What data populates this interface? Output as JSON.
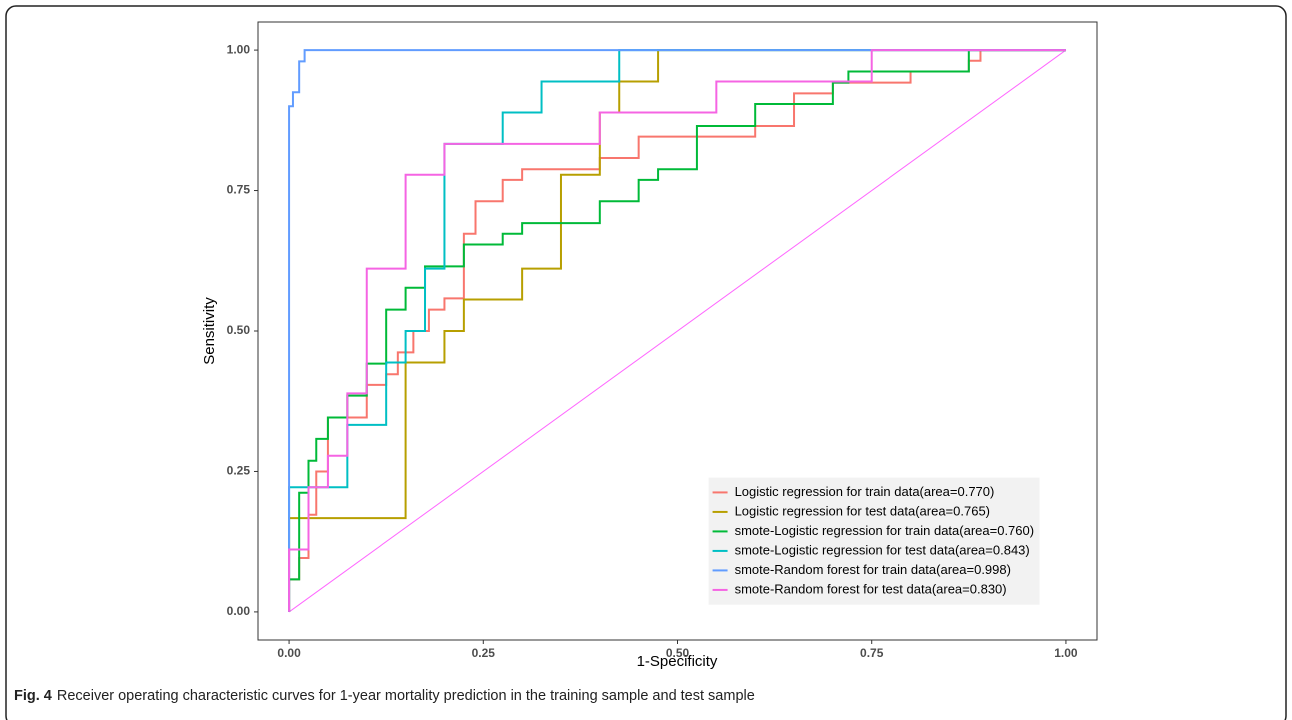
{
  "chart_data": {
    "type": "line",
    "x_label": "1-Specificity",
    "y_label": "Sensitivity",
    "xlim": [
      -0.04,
      1.04
    ],
    "ylim": [
      -0.05,
      1.05
    ],
    "xticks": [
      {
        "value": 0,
        "label": "0.00"
      },
      {
        "value": 0.25,
        "label": "0.25"
      },
      {
        "value": 0.5,
        "label": "0.50"
      },
      {
        "value": 0.75,
        "label": "0.75"
      },
      {
        "value": 1,
        "label": "1.00"
      }
    ],
    "yticks": [
      {
        "value": 0,
        "label": "0.00"
      },
      {
        "value": 0.25,
        "label": "0.25"
      },
      {
        "value": 0.5,
        "label": "0.50"
      },
      {
        "value": 0.75,
        "label": "0.75"
      },
      {
        "value": 1,
        "label": "1.00"
      }
    ],
    "grid": false,
    "legend_position": "bottom-right",
    "diagonal": {
      "color": "#ff66ff",
      "x": [
        0,
        1
      ],
      "values": [
        0,
        1
      ]
    },
    "series": [
      {
        "name": "Logistic regression for train data(area=0.770)",
        "color": "#f8766d",
        "x": [
          0,
          0,
          0.013,
          0.013,
          0.025,
          0.025,
          0.035,
          0.035,
          0.05,
          0.05,
          0.1,
          0.1,
          0.125,
          0.125,
          0.14,
          0.14,
          0.16,
          0.16,
          0.18,
          0.18,
          0.2,
          0.2,
          0.225,
          0.225,
          0.24,
          0.24,
          0.275,
          0.275,
          0.3,
          0.3,
          0.4,
          0.4,
          0.45,
          0.45,
          0.6,
          0.6,
          0.65,
          0.65,
          0.7,
          0.7,
          0.8,
          0.8,
          0.875,
          0.875,
          0.89,
          0.89,
          1
        ],
        "values": [
          0,
          0.058,
          0.058,
          0.096,
          0.096,
          0.173,
          0.173,
          0.25,
          0.25,
          0.346,
          0.346,
          0.404,
          0.404,
          0.423,
          0.423,
          0.462,
          0.462,
          0.5,
          0.5,
          0.538,
          0.538,
          0.558,
          0.558,
          0.673,
          0.673,
          0.731,
          0.731,
          0.769,
          0.769,
          0.788,
          0.788,
          0.808,
          0.808,
          0.846,
          0.846,
          0.865,
          0.865,
          0.923,
          0.923,
          0.942,
          0.942,
          0.962,
          0.962,
          0.981,
          0.981,
          1,
          1
        ]
      },
      {
        "name": "Logistic regression for test data(area=0.765)",
        "color": "#b79f00",
        "x": [
          0,
          0,
          0.15,
          0.15,
          0.2,
          0.2,
          0.225,
          0.225,
          0.3,
          0.3,
          0.35,
          0.35,
          0.4,
          0.4,
          0.425,
          0.425,
          0.475,
          0.475,
          1
        ],
        "values": [
          0,
          0.167,
          0.167,
          0.444,
          0.444,
          0.5,
          0.5,
          0.556,
          0.556,
          0.611,
          0.611,
          0.778,
          0.778,
          0.889,
          0.889,
          0.944,
          0.944,
          1,
          1
        ]
      },
      {
        "name": "smote-Logistic regression for train data(area=0.760)",
        "color": "#00ba38",
        "x": [
          0,
          0,
          0.013,
          0.013,
          0.025,
          0.025,
          0.035,
          0.035,
          0.05,
          0.05,
          0.075,
          0.075,
          0.1,
          0.1,
          0.125,
          0.125,
          0.15,
          0.15,
          0.175,
          0.175,
          0.225,
          0.225,
          0.275,
          0.275,
          0.3,
          0.3,
          0.4,
          0.4,
          0.45,
          0.45,
          0.475,
          0.475,
          0.525,
          0.525,
          0.6,
          0.6,
          0.7,
          0.7,
          0.72,
          0.72,
          0.875,
          0.875,
          1
        ],
        "values": [
          0,
          0.058,
          0.058,
          0.212,
          0.212,
          0.269,
          0.269,
          0.308,
          0.308,
          0.346,
          0.346,
          0.385,
          0.385,
          0.442,
          0.442,
          0.538,
          0.538,
          0.577,
          0.577,
          0.615,
          0.615,
          0.654,
          0.654,
          0.673,
          0.673,
          0.692,
          0.692,
          0.731,
          0.731,
          0.769,
          0.769,
          0.788,
          0.788,
          0.865,
          0.865,
          0.904,
          0.904,
          0.942,
          0.942,
          0.962,
          0.962,
          1,
          1
        ]
      },
      {
        "name": "smote-Logistic regression for test data(area=0.843)",
        "color": "#00bfc4",
        "x": [
          0,
          0,
          0.075,
          0.075,
          0.125,
          0.125,
          0.15,
          0.15,
          0.175,
          0.175,
          0.2,
          0.2,
          0.275,
          0.275,
          0.325,
          0.325,
          0.425,
          0.425,
          1
        ],
        "values": [
          0,
          0.222,
          0.222,
          0.333,
          0.333,
          0.444,
          0.444,
          0.5,
          0.5,
          0.611,
          0.611,
          0.833,
          0.833,
          0.889,
          0.889,
          0.944,
          0.944,
          1,
          1
        ]
      },
      {
        "name": "smote-Random forest for train data(area=0.998)",
        "color": "#619cff",
        "x": [
          0,
          0,
          0.005,
          0.005,
          0.013,
          0.013,
          0.02,
          0.02,
          1
        ],
        "values": [
          0,
          0.9,
          0.9,
          0.925,
          0.925,
          0.98,
          0.98,
          1,
          1
        ]
      },
      {
        "name": "smote-Random forest for test data(area=0.830)",
        "color": "#f564e3",
        "x": [
          0,
          0,
          0.025,
          0.025,
          0.05,
          0.05,
          0.075,
          0.075,
          0.1,
          0.1,
          0.15,
          0.15,
          0.2,
          0.2,
          0.4,
          0.4,
          0.55,
          0.55,
          0.75,
          0.75,
          1
        ],
        "values": [
          0,
          0.111,
          0.111,
          0.222,
          0.222,
          0.278,
          0.278,
          0.389,
          0.389,
          0.611,
          0.611,
          0.778,
          0.778,
          0.833,
          0.833,
          0.889,
          0.889,
          0.944,
          0.944,
          1,
          1
        ]
      }
    ]
  },
  "caption": {
    "label": "Fig. 4",
    "text": "Receiver operating characteristic curves for 1-year mortality prediction in the training sample and test sample"
  }
}
